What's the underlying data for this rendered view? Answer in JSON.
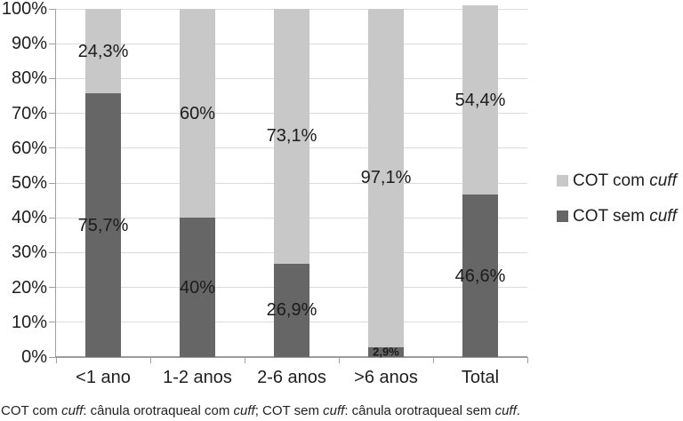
{
  "chart_data": {
    "type": "bar",
    "variant": "stacked-100",
    "title": "",
    "xlabel": "",
    "ylabel": "",
    "categories": [
      "<1 ano",
      "1-2 anos",
      "2-6 anos",
      ">6 anos",
      "Total"
    ],
    "series": [
      {
        "name": "COT sem cuff",
        "name_parts": [
          {
            "text": "COT sem ",
            "italic": false
          },
          {
            "text": "cuff",
            "italic": true
          }
        ],
        "color": "#666666",
        "values": [
          75.7,
          40,
          26.9,
          2.9,
          46.6
        ],
        "value_labels": [
          "75,7%",
          "40%",
          "26,9%",
          "2,9%",
          "46,6%"
        ]
      },
      {
        "name": "COT com cuff",
        "name_parts": [
          {
            "text": "COT com ",
            "italic": false
          },
          {
            "text": "cuff",
            "italic": true
          }
        ],
        "color": "#c8c8c8",
        "values": [
          24.3,
          60,
          73.1,
          97.1,
          54.4
        ],
        "value_labels": [
          "24,3%",
          "60%",
          "73,1%",
          "97,1%",
          "54,4%"
        ]
      }
    ],
    "y_tick_labels": [
      "0%",
      "10%",
      "20%",
      "30%",
      "40%",
      "50%",
      "60%",
      "70%",
      "80%",
      "90%",
      "100%"
    ],
    "ylim": [
      0,
      100
    ],
    "grid": true,
    "legend_position": "right",
    "legend_order": [
      "COT com cuff",
      "COT sem cuff"
    ]
  },
  "legend": {
    "items": [
      {
        "parts": [
          {
            "text": "COT com ",
            "italic": false
          },
          {
            "text": "cuff",
            "italic": true
          }
        ],
        "color": "#c8c8c8"
      },
      {
        "parts": [
          {
            "text": "COT sem ",
            "italic": false
          },
          {
            "text": "cuff",
            "italic": true
          }
        ],
        "color": "#666666"
      }
    ]
  },
  "caption": {
    "parts": [
      {
        "text": "COT com ",
        "italic": false
      },
      {
        "text": "cuff",
        "italic": true
      },
      {
        "text": ": cânula orotraqueal com ",
        "italic": false
      },
      {
        "text": "cuff",
        "italic": true
      },
      {
        "text": "; COT sem ",
        "italic": false
      },
      {
        "text": "cuff",
        "italic": true
      },
      {
        "text": ": cânula orotraqueal sem ",
        "italic": false
      },
      {
        "text": "cuff",
        "italic": true
      },
      {
        "text": ".",
        "italic": false
      }
    ]
  }
}
